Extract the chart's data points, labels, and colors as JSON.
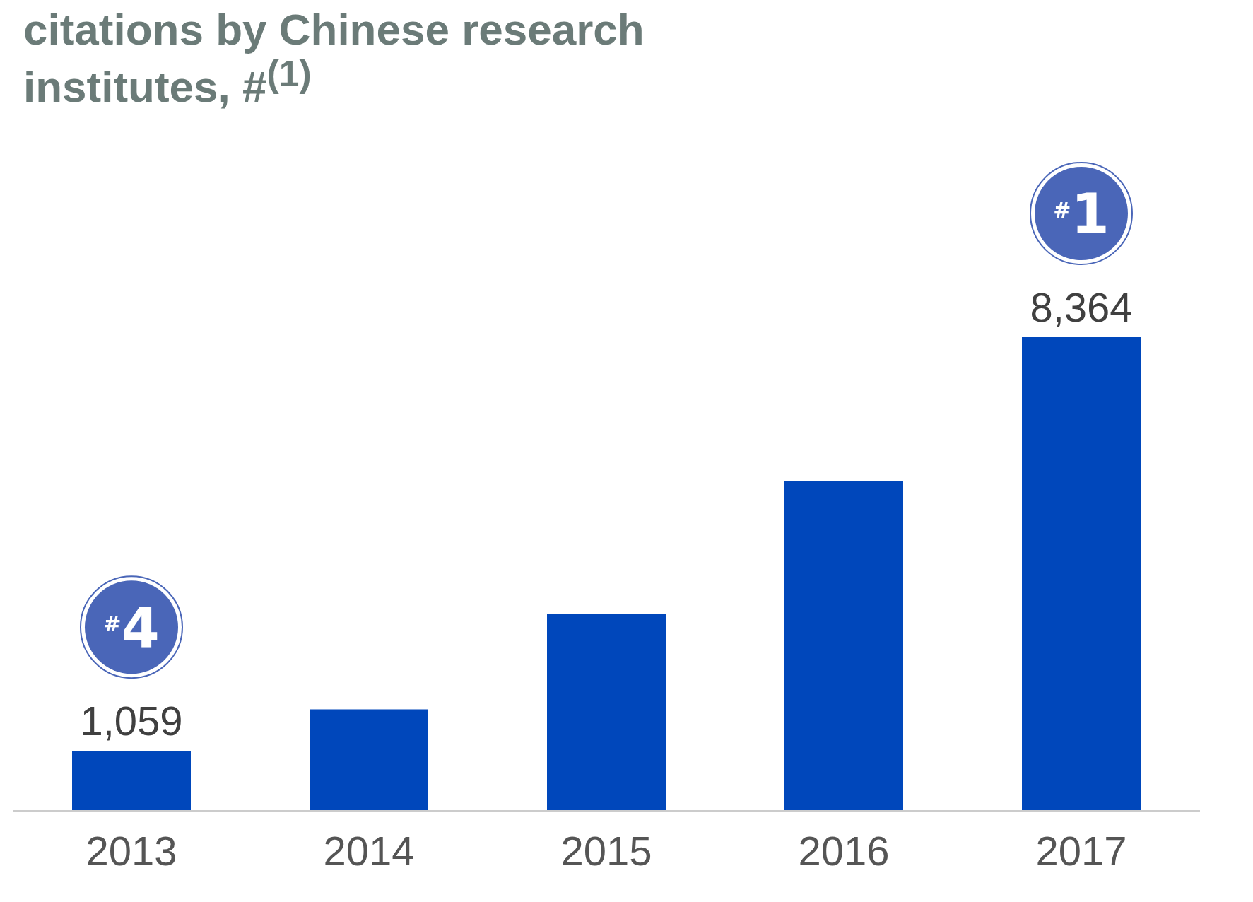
{
  "chart_data": {
    "type": "bar",
    "title": "citations by Chinese research institutes, #$^{(1)}$",
    "categories": [
      "2013",
      "2014",
      "2015",
      "2016",
      "2017"
    ],
    "values": [
      1059,
      1790,
      3470,
      5830,
      8364
    ],
    "value_labels": [
      "1,059",
      null,
      null,
      null,
      "8,364"
    ],
    "color": "#0047bb",
    "annotations": [
      "#4",
      "#1"
    ],
    "grid": false,
    "legend": false
  }
}
